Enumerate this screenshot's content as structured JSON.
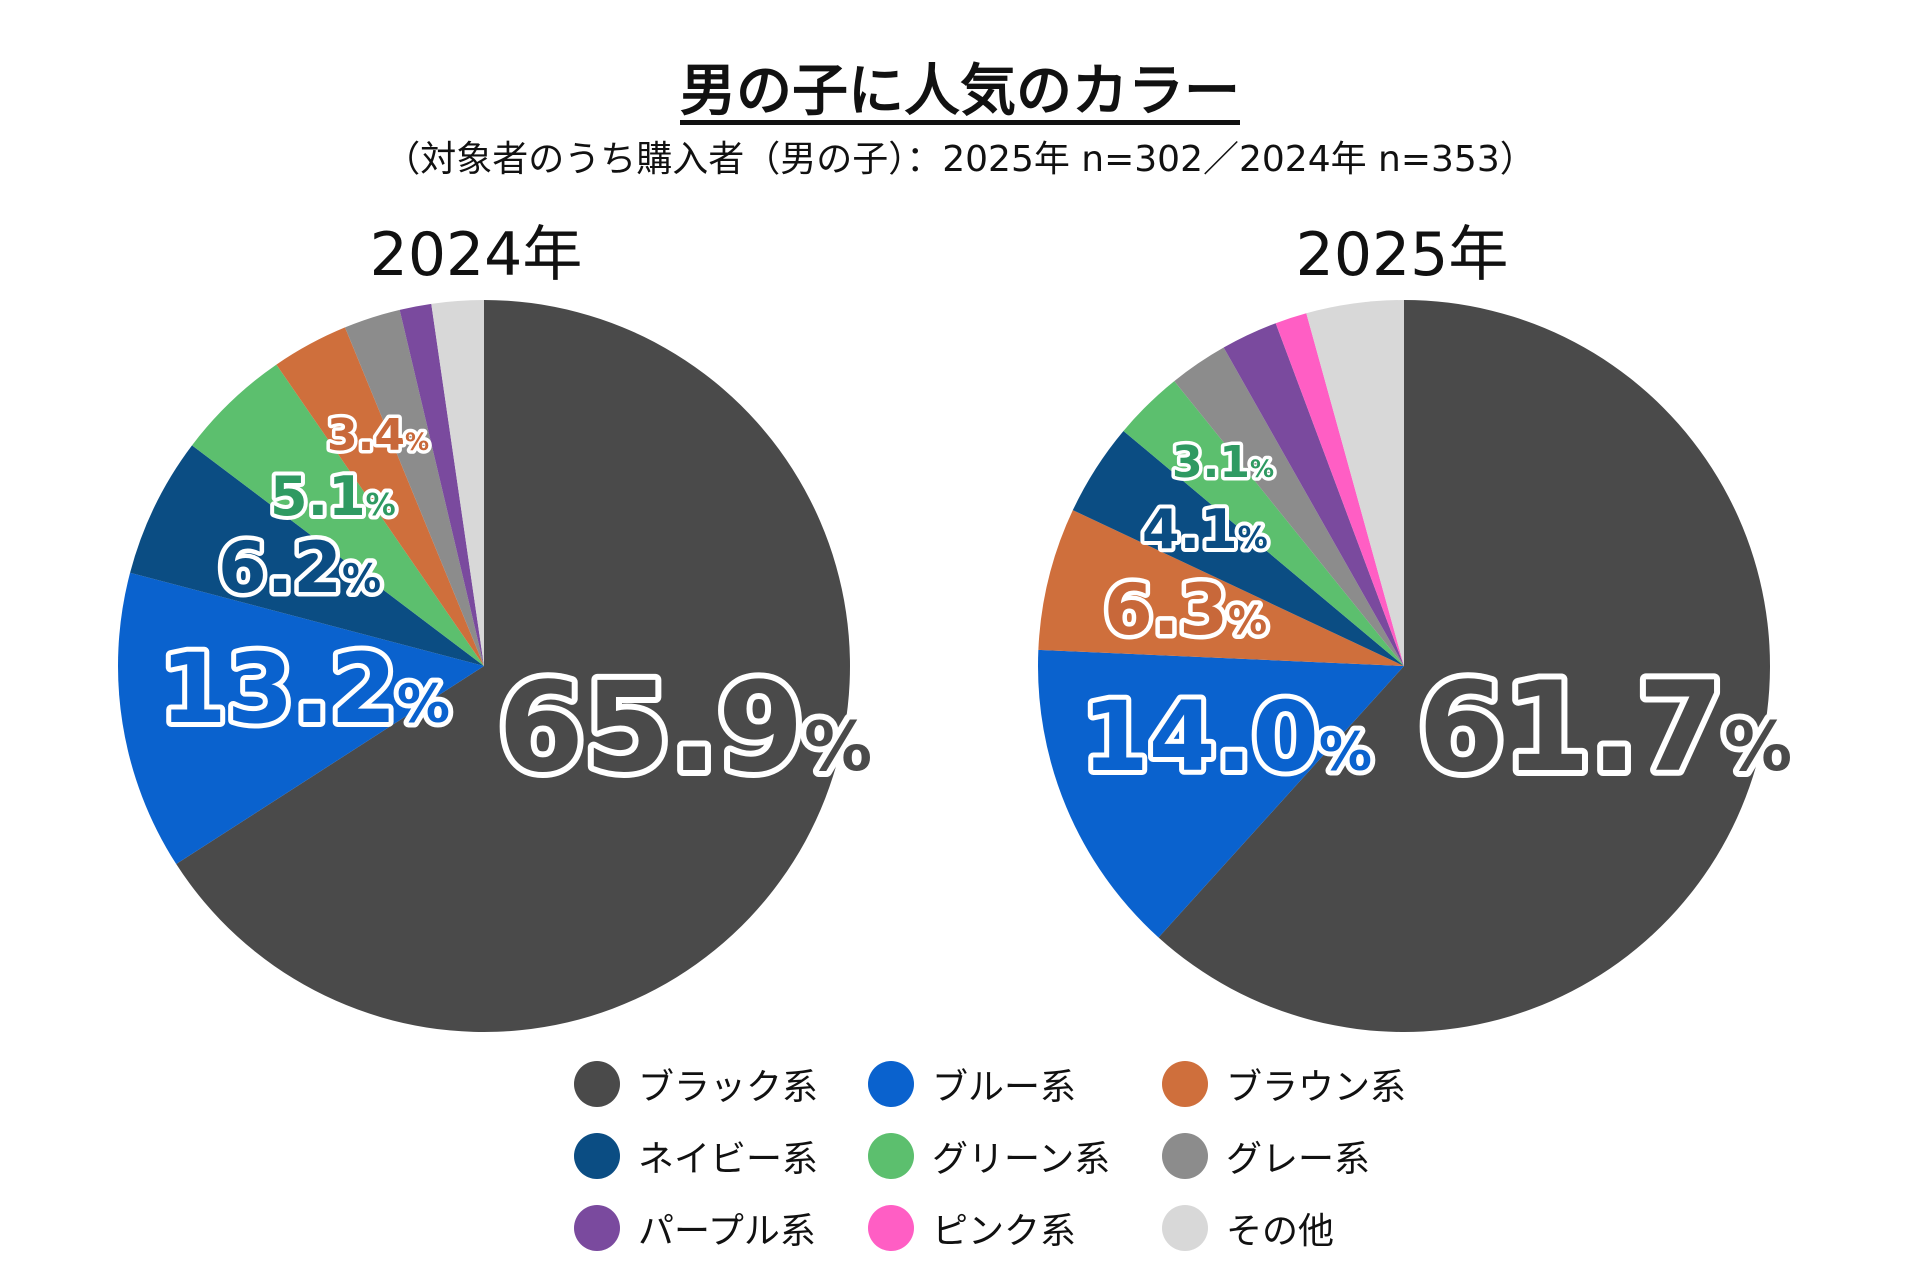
{
  "title": "男の子に人気のカラー",
  "subtitle": "（対象者のうち購入者（男の子）：2025年 n=302／2024年 n=353）",
  "chart_data": [
    {
      "type": "pie",
      "title": "2024年",
      "n": 353,
      "slices": [
        {
          "category": "ブラック系",
          "value": 65.9,
          "label": "65.9",
          "color": "#4a4a4a",
          "label_color": "#4a4a4a"
        },
        {
          "category": "ブルー系",
          "value": 13.2,
          "label": "13.2",
          "color": "#0a62ce",
          "label_color": "#0a62ce"
        },
        {
          "category": "ネイビー系",
          "value": 6.2,
          "label": "6.2",
          "color": "#0b4d83",
          "label_color": "#0b4d83"
        },
        {
          "category": "グリーン系",
          "value": 5.1,
          "label": "5.1",
          "color": "#5cbf6e",
          "label_color": "#2f9a62"
        },
        {
          "category": "ブラウン系",
          "value": 3.4,
          "label": "3.4",
          "color": "#cf6f3c",
          "label_color": "#c8683a"
        },
        {
          "category": "グレー系",
          "value": 2.5,
          "label": null,
          "color": "#8c8c8c"
        },
        {
          "category": "パープル系",
          "value": 1.4,
          "label": null,
          "color": "#7a4a9e"
        },
        {
          "category": "その他",
          "value": 2.3,
          "label": null,
          "color": "#d8d8d8"
        }
      ]
    },
    {
      "type": "pie",
      "title": "2025年",
      "n": 302,
      "slices": [
        {
          "category": "ブラック系",
          "value": 61.7,
          "label": "61.7",
          "color": "#4a4a4a",
          "label_color": "#4a4a4a"
        },
        {
          "category": "ブルー系",
          "value": 14.0,
          "label": "14.0",
          "color": "#0a62ce",
          "label_color": "#0a62ce"
        },
        {
          "category": "ブラウン系",
          "value": 6.3,
          "label": "6.3",
          "color": "#cf6f3c",
          "label_color": "#c8683a"
        },
        {
          "category": "ネイビー系",
          "value": 4.1,
          "label": "4.1",
          "color": "#0b4d83",
          "label_color": "#0b4d83"
        },
        {
          "category": "グリーン系",
          "value": 3.1,
          "label": "3.1",
          "color": "#5cbf6e",
          "label_color": "#2f9a62"
        },
        {
          "category": "グレー系",
          "value": 2.6,
          "label": null,
          "color": "#8c8c8c"
        },
        {
          "category": "パープル系",
          "value": 2.5,
          "label": null,
          "color": "#7a4a9e"
        },
        {
          "category": "ピンク系",
          "value": 1.4,
          "label": null,
          "color": "#ff5ec4"
        },
        {
          "category": "その他",
          "value": 4.3,
          "label": null,
          "color": "#d8d8d8"
        }
      ]
    }
  ],
  "percent_sign": "%",
  "legend": [
    {
      "label": "ブラック系",
      "color": "#4a4a4a"
    },
    {
      "label": "ブルー系",
      "color": "#0a62ce"
    },
    {
      "label": "ブラウン系",
      "color": "#cf6f3c"
    },
    {
      "label": "ネイビー系",
      "color": "#0b4d83"
    },
    {
      "label": "グリーン系",
      "color": "#5cbf6e"
    },
    {
      "label": "グレー系",
      "color": "#8c8c8c"
    },
    {
      "label": "パープル系",
      "color": "#7a4a9e"
    },
    {
      "label": "ピンク系",
      "color": "#ff5ec4"
    },
    {
      "label": "その他",
      "color": "#d8d8d8"
    }
  ]
}
